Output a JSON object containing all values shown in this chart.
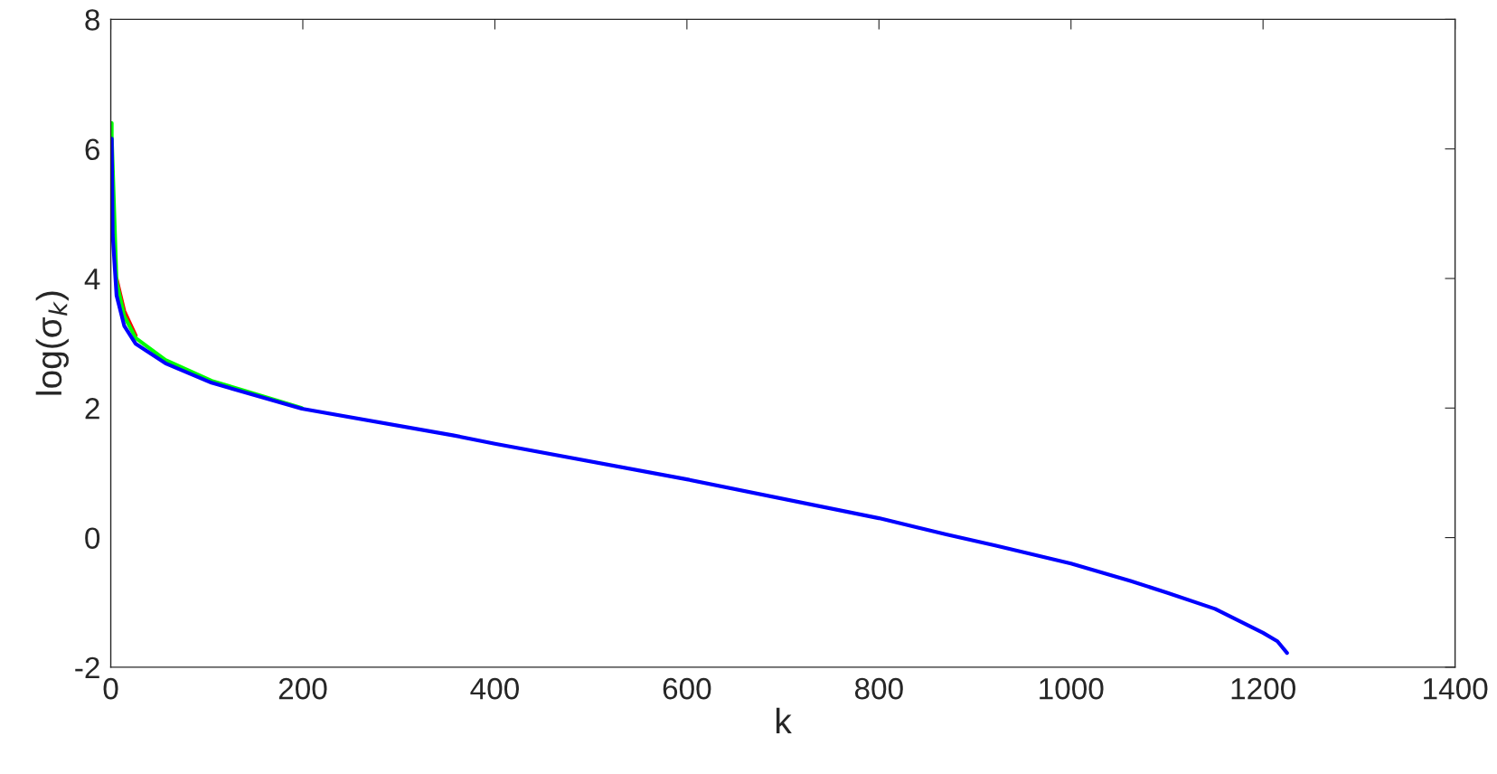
{
  "chart_data": {
    "type": "line",
    "xlabel": "k",
    "ylabel": "log(σ$_{k}$)",
    "x": [
      1,
      2,
      6,
      14,
      26,
      57,
      105,
      199,
      356,
      400,
      600,
      800,
      870,
      921,
      1000,
      1062,
      1100,
      1150,
      1200,
      1215,
      1225
    ],
    "series": [
      {
        "color": "#ff0000",
        "x": [
          6,
          14,
          26
        ],
        "values": [
          4.0,
          3.5,
          3.12
        ]
      },
      {
        "color": "#00ff00",
        "x": [
          1,
          1,
          2,
          6,
          14,
          26,
          57,
          105,
          199
        ],
        "values": [
          6.4,
          6.2,
          null,
          3.95,
          3.42,
          3.08,
          2.74,
          2.42,
          2.0
        ]
      },
      {
        "color": "#0000ff",
        "values": [
          6.16,
          4.67,
          3.74,
          3.27,
          2.99,
          2.69,
          2.39,
          1.99,
          1.58,
          1.45,
          0.9,
          0.3,
          0.05,
          -0.12,
          -0.4,
          -0.67,
          -0.85,
          -1.1,
          -1.47,
          -1.6,
          -1.78
        ]
      }
    ],
    "xlim": [
      0,
      1400
    ],
    "xticks": [
      0,
      200,
      400,
      600,
      800,
      1000,
      1200,
      1400
    ],
    "ylim": [
      -2,
      8
    ],
    "yticks": [
      -2,
      0,
      2,
      4,
      6,
      8
    ],
    "grid": false,
    "line_style": "solid"
  }
}
